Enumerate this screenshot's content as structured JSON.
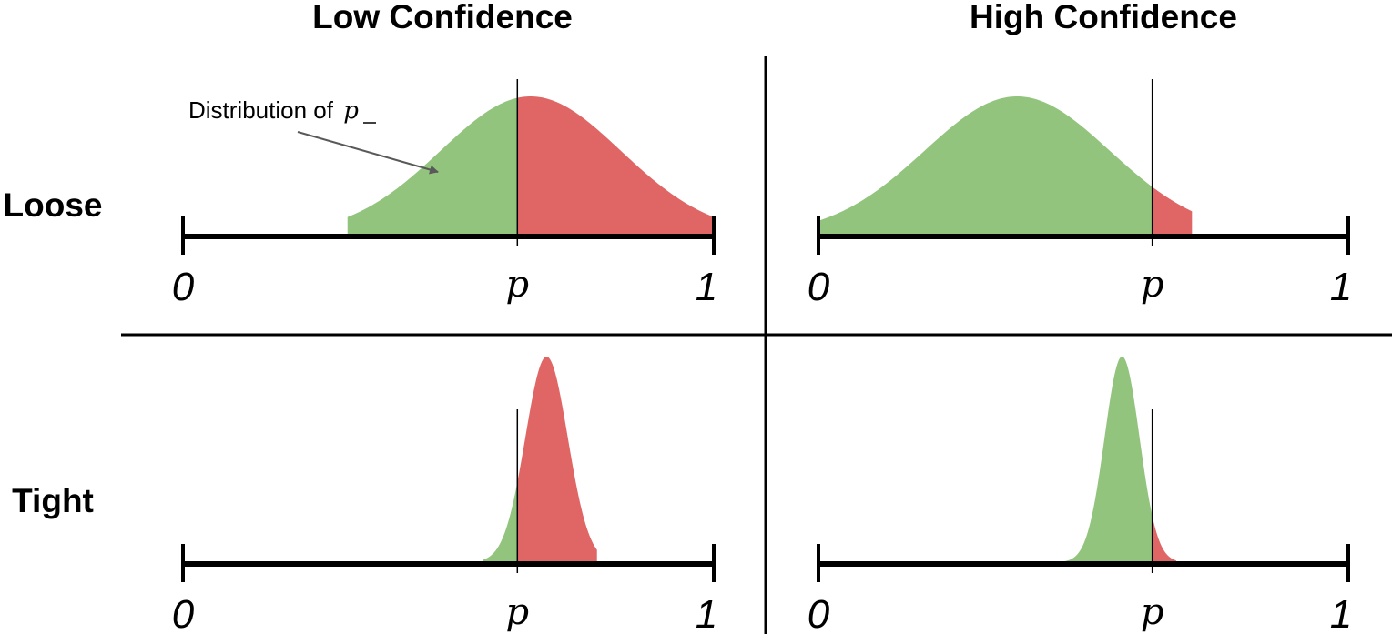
{
  "headers": {
    "columns": [
      "Low Confidence",
      "High Confidence"
    ],
    "rows": [
      "Loose",
      "Tight"
    ]
  },
  "axis_labels": {
    "min": "0",
    "threshold": "p",
    "max": "1"
  },
  "annotation": {
    "text": "Distribution of ",
    "symbol": "p"
  },
  "colors": {
    "below_threshold": "#92c47d",
    "above_threshold": "#e06666",
    "line": "#000000",
    "arrow": "#595959"
  },
  "panels": [
    {
      "id": "low-loose",
      "row": "Loose",
      "column": "Low Confidence",
      "threshold": 0.63,
      "mean": 0.655,
      "sd": 0.17,
      "support": [
        0.31,
        1.0
      ]
    },
    {
      "id": "high-loose",
      "row": "Loose",
      "column": "High Confidence",
      "threshold": 0.63,
      "mean": 0.375,
      "sd": 0.175,
      "support": [
        0.0,
        0.705
      ]
    },
    {
      "id": "low-tight",
      "row": "Tight",
      "column": "Low Confidence",
      "threshold": 0.63,
      "mean": 0.685,
      "sd": 0.04,
      "support": [
        0.565,
        0.78
      ]
    },
    {
      "id": "high-tight",
      "row": "Tight",
      "column": "High Confidence",
      "threshold": 0.63,
      "mean": 0.573,
      "sd": 0.033,
      "support": [
        0.46,
        0.675
      ]
    }
  ]
}
